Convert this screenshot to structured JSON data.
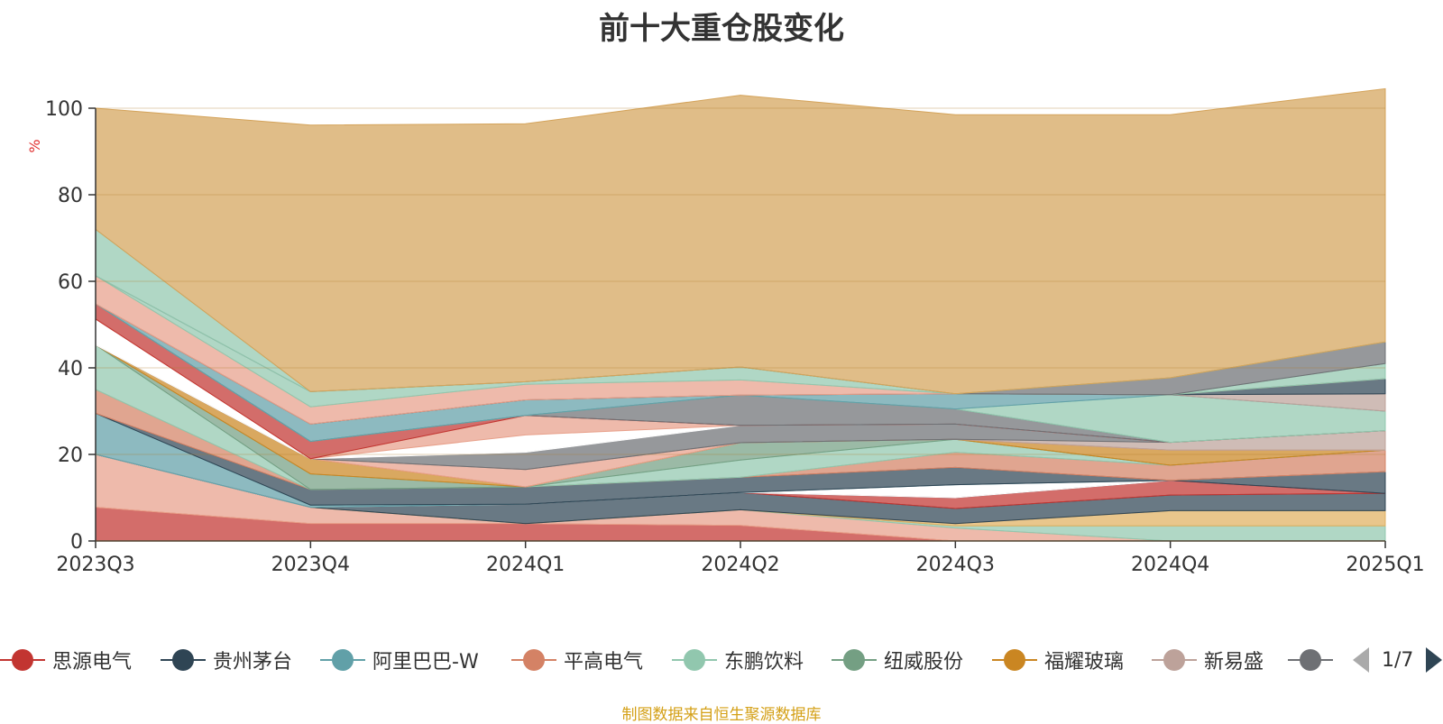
{
  "chart_data": {
    "type": "area",
    "stacked": true,
    "title": "前十大重仓股变化",
    "ylabel": "%",
    "ylim": [
      0,
      100
    ],
    "yticks": [
      0,
      20,
      40,
      60,
      80,
      100
    ],
    "categories": [
      "2023Q3",
      "2023Q4",
      "2024Q1",
      "2024Q2",
      "2024Q3",
      "2024Q4",
      "2025Q1"
    ],
    "grid": true,
    "series": [
      {
        "name": "思源电气",
        "color": "#c23531",
        "values": [
          7.8,
          4.0,
          4.0,
          3.6,
          0.0,
          0.0,
          0.0
        ]
      },
      {
        "name": "",
        "color": "#e8a08a",
        "values": [
          12.2,
          3.8,
          0.0,
          3.6,
          3.0,
          0.0,
          0.0
        ]
      },
      {
        "name": "",
        "color": "#91c7ae",
        "values": [
          0.0,
          0.0,
          0.0,
          0.0,
          0.5,
          3.5,
          3.5
        ]
      },
      {
        "name": "",
        "color": "#e0b060",
        "values": [
          0.0,
          0.0,
          0.0,
          0.0,
          0.5,
          3.5,
          3.5
        ]
      },
      {
        "name": "贵州茅台",
        "color": "#2f4554",
        "values": [
          0.0,
          0.0,
          4.5,
          4.0,
          3.5,
          3.6,
          4.0
        ]
      },
      {
        "name": "",
        "color": "#c23531",
        "values": [
          0.0,
          0.0,
          0.0,
          0.0,
          2.5,
          3.4,
          0.0
        ]
      },
      {
        "name": "",
        "color": "#2f4554",
        "values": [
          0.0,
          0.0,
          0.0,
          0.0,
          0.0,
          0.0,
          5.0
        ]
      },
      {
        "name": "",
        "color": "#ffffff",
        "values": [
          0.0,
          0.0,
          0.0,
          0.0,
          3.0,
          0.0,
          0.0
        ]
      },
      {
        "name": "阿里巴巴-W",
        "color": "#61a0a8",
        "values": [
          9.5,
          0.5,
          0.0,
          0.0,
          0.0,
          0.0,
          0.0
        ]
      },
      {
        "name": "",
        "color": "#2f4554",
        "values": [
          0.0,
          3.6,
          4.0,
          3.5,
          4.0,
          0.0,
          0.0
        ]
      },
      {
        "name": "平高电气",
        "color": "#d48265",
        "values": [
          5.5,
          0.0,
          0.0,
          0.0,
          3.5,
          3.5,
          5.0
        ]
      },
      {
        "name": "东鹏饮料",
        "color": "#91c7ae",
        "values": [
          10.3,
          0.0,
          0.0,
          4.0,
          3.0,
          0.0,
          0.0
        ]
      },
      {
        "name": "纽威股份",
        "color": "#749f83",
        "values": [
          0.0,
          3.6,
          0.0,
          4.0,
          0.0,
          0.0,
          0.0
        ]
      },
      {
        "name": "福耀玻璃",
        "color": "#ca8622",
        "values": [
          0.0,
          3.5,
          0.0,
          0.0,
          0.0,
          3.5,
          0.0
        ]
      },
      {
        "name": "",
        "color": "#e8a08a",
        "values": [
          0.0,
          0.0,
          4.0,
          0.0,
          0.0,
          0.0,
          0.0
        ]
      },
      {
        "name": "新易盛",
        "color": "#bda29a",
        "values": [
          0.0,
          0.0,
          0.0,
          0.0,
          0.0,
          1.8,
          4.5
        ]
      },
      {
        "name": "",
        "color": "#6e7074",
        "values": [
          0.0,
          0.0,
          4.0,
          4.0,
          3.5,
          0.0,
          0.0
        ]
      },
      {
        "name": "",
        "color": "#ffffff",
        "values": [
          6.0,
          0.0,
          4.0,
          0.0,
          0.0,
          0.0,
          0.0
        ]
      },
      {
        "name": "",
        "color": "#e8a08a",
        "values": [
          0.0,
          0.0,
          4.5,
          0.0,
          0.0,
          0.0,
          0.0
        ]
      },
      {
        "name": "",
        "color": "#c23531",
        "values": [
          3.5,
          4.0,
          0.0,
          0.0,
          0.0,
          0.0,
          0.0
        ]
      },
      {
        "name": "",
        "color": "#6e7074",
        "values": [
          0.0,
          0.0,
          0.0,
          7.0,
          3.5,
          0.0,
          0.0
        ]
      },
      {
        "name": "",
        "color": "#91c7ae",
        "values": [
          0.0,
          0.0,
          0.0,
          0.0,
          0.0,
          11.0,
          4.5
        ]
      },
      {
        "name": "",
        "color": "#61a0a8",
        "values": [
          0.0,
          4.0,
          3.6,
          0.0,
          3.5,
          0.0,
          0.0
        ]
      },
      {
        "name": "",
        "color": "#bda29a",
        "values": [
          0.0,
          0.0,
          0.0,
          0.0,
          0.0,
          0.0,
          4.0
        ]
      },
      {
        "name": "",
        "color": "#2f4554",
        "values": [
          0.0,
          0.0,
          0.0,
          0.0,
          0.0,
          0.0,
          3.5
        ]
      },
      {
        "name": "",
        "color": "#e8a08a",
        "values": [
          6.5,
          4.0,
          3.6,
          3.5,
          0.0,
          0.0,
          0.0
        ]
      },
      {
        "name": "",
        "color": "#91c7ae",
        "values": [
          0.0,
          3.5,
          0.6,
          3.0,
          0.0,
          0.0,
          3.5
        ]
      },
      {
        "name": "",
        "color": "#6e7074",
        "values": [
          0.0,
          0.0,
          0.0,
          0.0,
          0.0,
          3.9,
          5.0
        ]
      },
      {
        "name": "",
        "color": "#91c7ae",
        "values": [
          10.7,
          0.0,
          0.0,
          0.0,
          0.0,
          0.0,
          0.0
        ]
      },
      {
        "name": "",
        "color": "#d4a35a",
        "values": [
          28.0,
          61.6,
          59.6,
          62.8,
          64.5,
          60.8,
          58.5
        ]
      }
    ]
  },
  "legend": {
    "items": [
      {
        "name": "思源电气",
        "color": "#c23531"
      },
      {
        "name": "贵州茅台",
        "color": "#2f4554"
      },
      {
        "name": "阿里巴巴-W",
        "color": "#61a0a8"
      },
      {
        "name": "平高电气",
        "color": "#d48265"
      },
      {
        "name": "东鹏饮料",
        "color": "#91c7ae"
      },
      {
        "name": "纽威股份",
        "color": "#749f83"
      },
      {
        "name": "福耀玻璃",
        "color": "#ca8622"
      },
      {
        "name": "新易盛",
        "color": "#bda29a"
      },
      {
        "name": "",
        "color": "#6e7074"
      }
    ],
    "page": "1/7"
  },
  "footnote": "制图数据来自恒生聚源数据库"
}
